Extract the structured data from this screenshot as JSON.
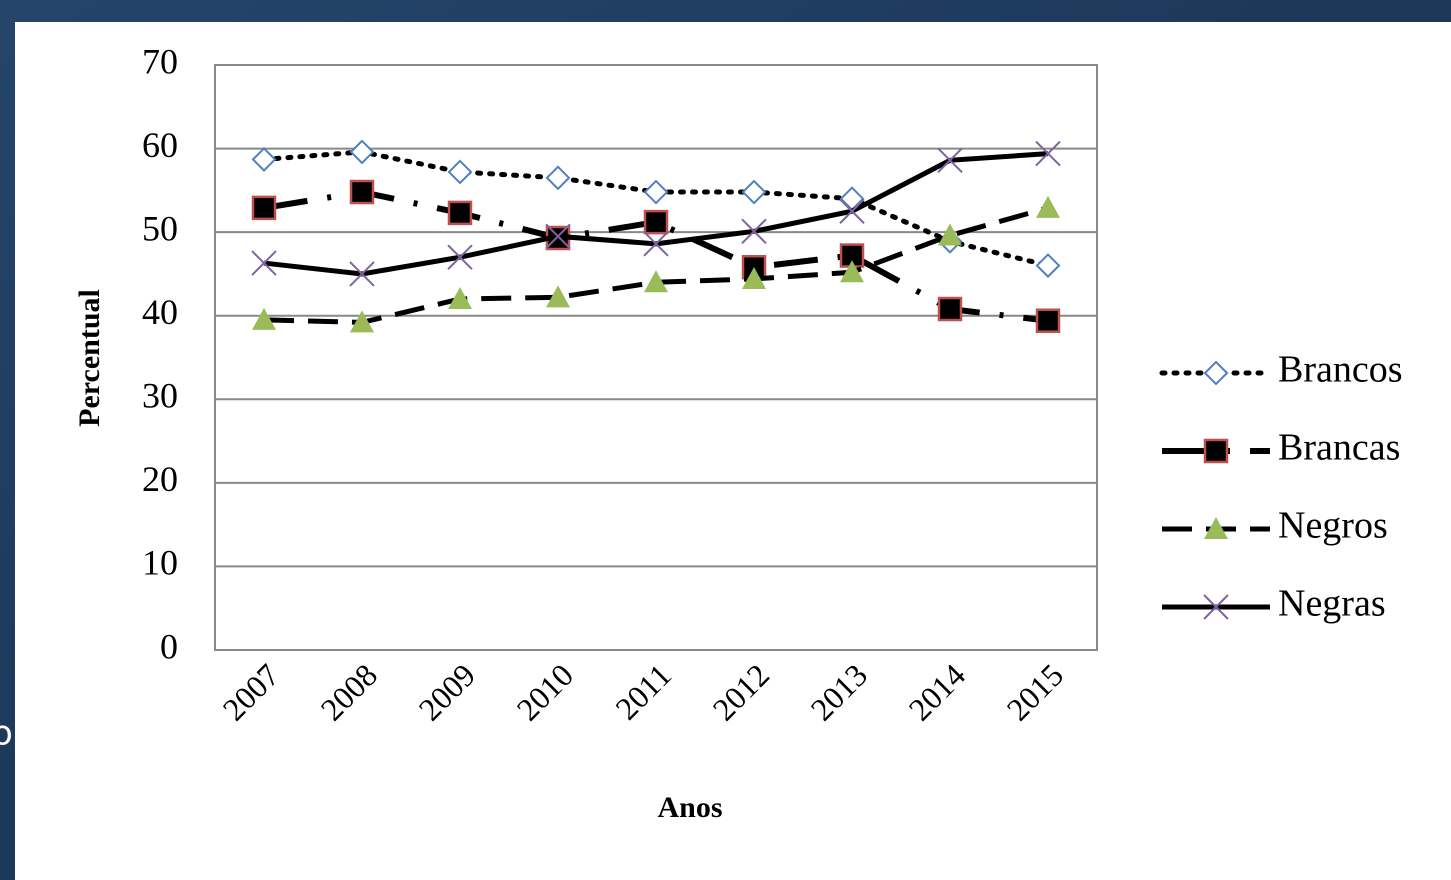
{
  "background_text": "o",
  "chart_data": {
    "type": "line",
    "x_label": "Anos",
    "y_label": "Percentual",
    "categories": [
      "2007",
      "2008",
      "2009",
      "2010",
      "2011",
      "2012",
      "2013",
      "2014",
      "2015"
    ],
    "series": [
      {
        "name": "Brancos",
        "color": "#000000",
        "marker": "diamond",
        "marker_color": "#4f81bd",
        "dash": "dotted",
        "values": [
          58.7,
          59.6,
          57.2,
          56.5,
          54.8,
          54.8,
          54.0,
          48.9,
          46.0
        ]
      },
      {
        "name": "Brancas",
        "color": "#000000",
        "marker": "square",
        "marker_color": "#c0504d",
        "dash": "dashdot",
        "values": [
          52.9,
          54.8,
          52.3,
          49.3,
          51.2,
          45.8,
          47.2,
          40.8,
          39.4
        ]
      },
      {
        "name": "Negros",
        "color": "#000000",
        "marker": "triangle",
        "marker_color": "#9bbb59",
        "dash": "dashed",
        "values": [
          39.5,
          39.2,
          42.0,
          42.2,
          44.0,
          44.4,
          45.2,
          49.6,
          52.9
        ]
      },
      {
        "name": "Negras",
        "color": "#000000",
        "marker": "x",
        "marker_color": "#8064a2",
        "dash": "solid",
        "values": [
          46.3,
          45.0,
          47.0,
          49.5,
          48.6,
          50.1,
          52.5,
          58.6,
          59.4
        ]
      }
    ],
    "ylim": [
      0,
      70
    ],
    "yticks": [
      0,
      10,
      20,
      30,
      40,
      50,
      60,
      70
    ],
    "grid": true,
    "legend": "right"
  }
}
